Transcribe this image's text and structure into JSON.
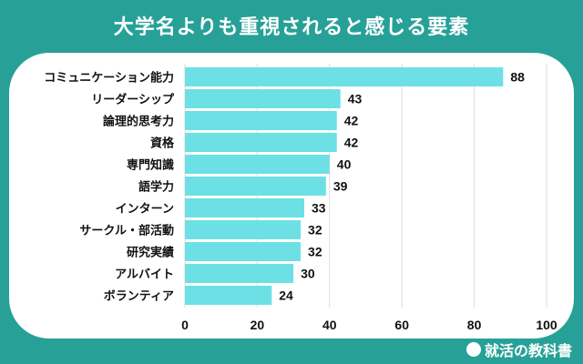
{
  "title": "大学名よりも重視されると感じる要素",
  "logo": "就活の教科書",
  "colors": {
    "background": "#27a197",
    "bar": "#6de0e6"
  },
  "chart_data": {
    "type": "bar",
    "orientation": "horizontal",
    "categories": [
      "コミュニケーション能力",
      "リーダーシップ",
      "論理的思考力",
      "資格",
      "専門知識",
      "語学力",
      "インターン",
      "サークル・部活動",
      "研究実績",
      "アルバイト",
      "ボランティア"
    ],
    "values": [
      88,
      43,
      42,
      42,
      40,
      39,
      33,
      32,
      32,
      30,
      24
    ],
    "xlim": [
      0,
      100
    ],
    "xticks": [
      0,
      20,
      40,
      60,
      80,
      100
    ],
    "grid": true
  }
}
